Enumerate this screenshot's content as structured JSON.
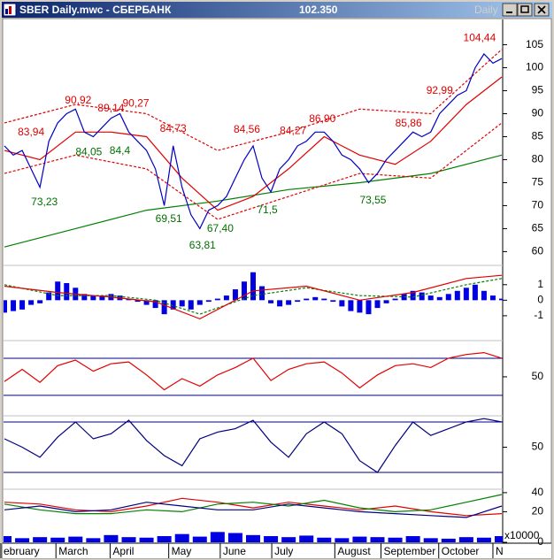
{
  "window": {
    "title": "SBER Daily.mwc - СБЕРБАНК",
    "readout": "102.350",
    "period": "Daily"
  },
  "chart_data": [
    {
      "type": "line",
      "xlim": [
        -0.1,
        56.1
      ],
      "xticks": [
        {
          "value": -0.4,
          "label": "ebruary"
        },
        {
          "value": 5.8,
          "label": "March"
        },
        {
          "value": 11.9,
          "label": "April"
        },
        {
          "value": 18.5,
          "label": "May"
        },
        {
          "value": 24.3,
          "label": "June"
        },
        {
          "value": 30.1,
          "label": "July"
        },
        {
          "value": 37.2,
          "label": "August"
        },
        {
          "value": 42.4,
          "label": "September"
        },
        {
          "value": 48.9,
          "label": "October"
        },
        {
          "value": 55,
          "label": "N"
        }
      ],
      "ylim": [
        57,
        110.5
      ],
      "yticks": [
        60,
        65,
        70,
        75,
        80,
        85,
        90,
        95,
        100,
        105
      ],
      "series": [
        {
          "color": "#008000",
          "x": [
            0,
            8,
            16,
            24,
            32,
            40,
            48,
            56
          ],
          "values": [
            61,
            65,
            69,
            71,
            73.5,
            75,
            77,
            81
          ]
        },
        {
          "color": "#e00000",
          "style": "dashed",
          "x": [
            0,
            8,
            16,
            24,
            32,
            40,
            48,
            56
          ],
          "values": [
            88,
            92,
            90,
            82,
            86,
            91,
            90,
            104
          ]
        },
        {
          "color": "#e00000",
          "style": "dashed",
          "x": [
            0,
            8,
            16,
            24,
            32,
            40,
            48,
            56
          ],
          "values": [
            77,
            81,
            78,
            67,
            72,
            77,
            76,
            88
          ]
        },
        {
          "color": "#e00000",
          "x": [
            0,
            4,
            8,
            12,
            16,
            20,
            24,
            28,
            32,
            36,
            40,
            44,
            48,
            52,
            56
          ],
          "values": [
            82,
            80,
            86,
            86,
            85,
            76,
            69,
            72,
            78,
            85,
            81,
            79,
            84,
            92,
            98
          ]
        },
        {
          "color": "#0000c0",
          "values": [
            83,
            81,
            82,
            78,
            74,
            84,
            88,
            90,
            91,
            86,
            85,
            87,
            89,
            90,
            86,
            84,
            82,
            78,
            70,
            83,
            74,
            68,
            65,
            69,
            70,
            72,
            76,
            80,
            83,
            76,
            73,
            78,
            80,
            83,
            84,
            86,
            86,
            84,
            81,
            80,
            78,
            75,
            77,
            80,
            82,
            84,
            86,
            85,
            86,
            90,
            92,
            94,
            95,
            100,
            103,
            101,
            102
          ]
        }
      ],
      "annotations": [
        {
          "index": 3,
          "value": 83.94,
          "label": "83,94",
          "color": "#e00000",
          "kind": "high"
        },
        {
          "index": 8.3,
          "value": 90.92,
          "label": "90,92",
          "color": "#e00000",
          "kind": "high"
        },
        {
          "index": 12,
          "value": 89.14,
          "label": "89,14",
          "color": "#e00000",
          "kind": "high"
        },
        {
          "index": 14.8,
          "value": 90.27,
          "label": "90,27",
          "color": "#e00000",
          "kind": "high"
        },
        {
          "index": 19,
          "value": 84.73,
          "label": "84,73",
          "color": "#e00000",
          "kind": "high"
        },
        {
          "index": 27.3,
          "value": 84.56,
          "label": "84,56",
          "color": "#e00000",
          "kind": "high"
        },
        {
          "index": 32.5,
          "value": 84.27,
          "label": "84,27",
          "color": "#e00000",
          "kind": "high"
        },
        {
          "index": 35.8,
          "value": 86.9,
          "label": "86,90",
          "color": "#e00000",
          "kind": "high"
        },
        {
          "index": 45.5,
          "value": 85.86,
          "label": "85,86",
          "color": "#e00000",
          "kind": "high"
        },
        {
          "index": 49,
          "value": 92.99,
          "label": "92,99",
          "color": "#e00000",
          "kind": "high"
        },
        {
          "index": 53.5,
          "value": 104.44,
          "label": "104,44",
          "color": "#e00000",
          "kind": "high"
        },
        {
          "index": 4.5,
          "value": 73.23,
          "label": "73,23",
          "color": "#007000",
          "kind": "low"
        },
        {
          "index": 9.5,
          "value": 84.05,
          "label": "84,05",
          "color": "#007000",
          "kind": "low"
        },
        {
          "index": 13,
          "value": 84.4,
          "label": "84,4",
          "color": "#007000",
          "kind": "low"
        },
        {
          "index": 18.5,
          "value": 69.51,
          "label": "69,51",
          "color": "#007000",
          "kind": "low"
        },
        {
          "index": 22.3,
          "value": 63.81,
          "label": "63,81",
          "color": "#007000",
          "kind": "low"
        },
        {
          "index": 24.3,
          "value": 67.4,
          "label": "67,40",
          "color": "#007000",
          "kind": "low"
        },
        {
          "index": 29.6,
          "value": 71.5,
          "label": "71,5",
          "color": "#007000",
          "kind": "low"
        },
        {
          "index": 41.5,
          "value": 73.55,
          "label": "73,55",
          "color": "#007000",
          "kind": "low"
        }
      ]
    },
    {
      "type": "line",
      "ylim": [
        -2.6,
        2.24
      ],
      "yticks": [
        1,
        0,
        -1
      ],
      "series": [
        {
          "color": "#0000e0",
          "style": "bars",
          "values": [
            -0.8,
            -0.7,
            -0.6,
            -0.3,
            -0.2,
            0.5,
            1.2,
            1.1,
            0.8,
            0.4,
            0.3,
            0.3,
            0.4,
            0.3,
            0.1,
            -0.1,
            -0.3,
            -0.5,
            -0.9,
            -0.6,
            -0.4,
            -0.6,
            -0.3,
            -0.1,
            0.1,
            0.3,
            0.7,
            1.2,
            1.8,
            0.9,
            -0.2,
            -0.4,
            -0.3,
            -0.1,
            0.1,
            0.2,
            0.1,
            -0.1,
            -0.4,
            -0.7,
            -0.8,
            -0.9,
            -0.5,
            -0.2,
            0.1,
            0.4,
            0.6,
            0.5,
            0.3,
            0.2,
            0.4,
            0.6,
            0.8,
            1.0,
            0.6,
            0.3,
            0.1
          ]
        },
        {
          "color": "#008000",
          "style": "dashed",
          "x": [
            0,
            6,
            12,
            17,
            22,
            28,
            34,
            40,
            46,
            52,
            56
          ],
          "values": [
            1.0,
            0.3,
            0.3,
            0.0,
            -0.9,
            0.3,
            0.8,
            0.3,
            0.2,
            1.0,
            1.4
          ]
        },
        {
          "color": "#e00000",
          "x": [
            0,
            6,
            12,
            17,
            22,
            28,
            34,
            40,
            46,
            52,
            56
          ],
          "values": [
            0.9,
            0.5,
            0.2,
            -0.1,
            -1.2,
            0.6,
            0.9,
            0.0,
            0.5,
            1.4,
            1.6
          ]
        }
      ]
    },
    {
      "type": "line",
      "ylim": [
        8,
        89
      ],
      "yticks": [
        50
      ],
      "guides": [
        70,
        30
      ],
      "series": [
        {
          "color": "#e00000",
          "x": [
            0,
            2,
            4,
            6,
            8,
            10,
            12,
            14,
            16,
            18,
            20,
            22,
            24,
            26,
            28,
            30,
            32,
            34,
            36,
            38,
            40,
            42,
            44,
            46,
            48,
            50,
            52,
            54,
            56
          ],
          "values": [
            45,
            58,
            44,
            62,
            68,
            56,
            64,
            66,
            52,
            36,
            48,
            40,
            52,
            60,
            70,
            46,
            58,
            64,
            66,
            54,
            38,
            52,
            62,
            64,
            60,
            70,
            74,
            76,
            70
          ]
        }
      ]
    },
    {
      "type": "line",
      "ylim": [
        -2.1,
        87.4
      ],
      "yticks": [
        50
      ],
      "guides": [
        80,
        20
      ],
      "series": [
        {
          "color": "#000080",
          "x": [
            0,
            2,
            4,
            6,
            8,
            10,
            12,
            14,
            16,
            18,
            20,
            22,
            24,
            26,
            28,
            30,
            32,
            34,
            36,
            38,
            40,
            42,
            44,
            46,
            48,
            50,
            52,
            54,
            56
          ],
          "values": [
            60,
            50,
            38,
            62,
            80,
            60,
            66,
            82,
            58,
            40,
            28,
            60,
            68,
            72,
            82,
            56,
            38,
            66,
            80,
            66,
            34,
            20,
            52,
            80,
            64,
            72,
            80,
            84,
            80
          ]
        }
      ]
    },
    {
      "type": "line",
      "ylim": [
        0,
        43.6
      ],
      "yticks": [
        20,
        40
      ],
      "series": [
        {
          "color": "#e00000",
          "x": [
            0,
            4,
            8,
            12,
            16,
            20,
            24,
            28,
            32,
            36,
            40,
            44,
            48,
            52,
            56
          ],
          "values": [
            30,
            28,
            22,
            20,
            26,
            34,
            30,
            24,
            30,
            26,
            22,
            26,
            20,
            16,
            18
          ]
        },
        {
          "color": "#008000",
          "x": [
            0,
            4,
            8,
            12,
            16,
            20,
            24,
            28,
            32,
            36,
            40,
            44,
            48,
            52,
            56
          ],
          "values": [
            28,
            22,
            18,
            18,
            22,
            20,
            28,
            30,
            26,
            32,
            24,
            20,
            22,
            30,
            38
          ]
        },
        {
          "color": "#000080",
          "x": [
            0,
            4,
            8,
            12,
            16,
            20,
            24,
            28,
            32,
            36,
            40,
            44,
            48,
            52,
            56
          ],
          "values": [
            22,
            26,
            20,
            22,
            30,
            26,
            22,
            22,
            28,
            24,
            20,
            18,
            16,
            14,
            26
          ]
        }
      ]
    },
    {
      "type": "bar",
      "ylim": [
        0,
        120
      ],
      "yticks": [
        0
      ],
      "unit_label": "x10000",
      "color": "#0000e0",
      "x": [
        0,
        2,
        4,
        6,
        8,
        10,
        12,
        14,
        16,
        18,
        20,
        22,
        24,
        26,
        28,
        30,
        32,
        34,
        36,
        38,
        40,
        42,
        44,
        46,
        48,
        50,
        52,
        54,
        56
      ],
      "values": [
        60,
        40,
        50,
        45,
        55,
        40,
        70,
        50,
        45,
        60,
        80,
        55,
        100,
        90,
        70,
        60,
        50,
        65,
        45,
        40,
        55,
        50,
        45,
        60,
        40,
        35,
        50,
        45,
        60
      ]
    }
  ]
}
